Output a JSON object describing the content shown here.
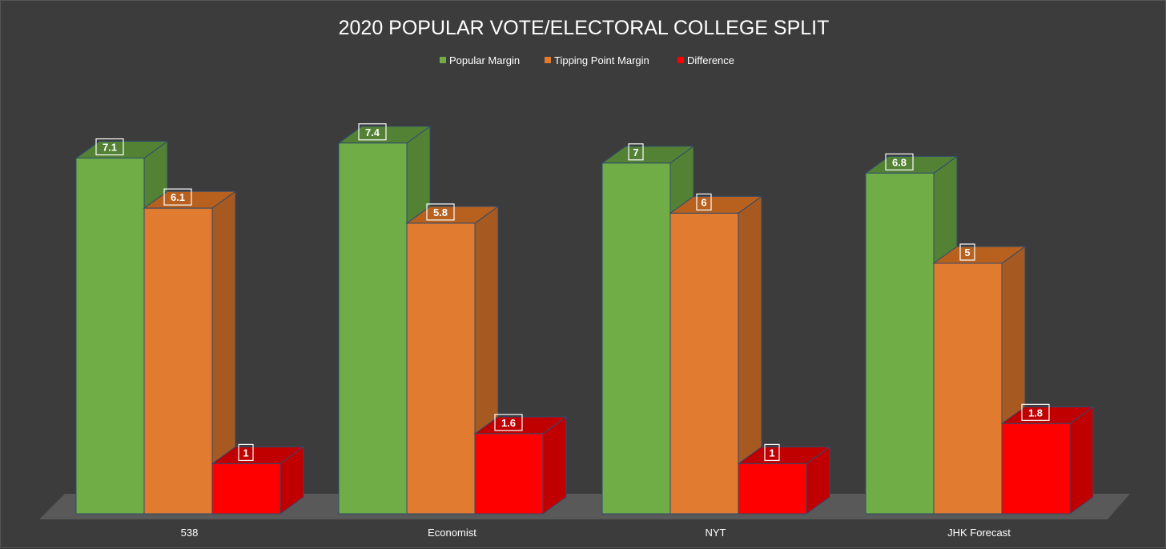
{
  "chart_data": {
    "type": "bar",
    "title": "2020 POPULAR VOTE/ELECTORAL COLLEGE SPLIT",
    "categories": [
      "538",
      "Economist",
      "NYT",
      "JHK Forecast"
    ],
    "series": [
      {
        "name": "Popular Margin",
        "values": [
          7.1,
          7.4,
          7,
          6.8
        ],
        "color": "#70ad47",
        "side_color": "#548235",
        "top_color": "#548235"
      },
      {
        "name": "Tipping Point Margin",
        "values": [
          6.1,
          5.8,
          6,
          5
        ],
        "color": "#e07b30",
        "side_color": "#a65a22",
        "top_color": "#b8611f"
      },
      {
        "name": "Difference",
        "values": [
          1,
          1.6,
          1,
          1.8
        ],
        "color": "#ff0000",
        "side_color": "#c00000",
        "top_color": "#c00000"
      }
    ],
    "data_labels": [
      [
        "7.1",
        "7.4",
        "7",
        "6.8"
      ],
      [
        "6.1",
        "5.8",
        "6",
        "5"
      ],
      [
        "1",
        "1.6",
        "1",
        "1.8"
      ]
    ],
    "xlabel": "",
    "ylabel": "",
    "ylim": [
      0,
      8
    ],
    "grid": false,
    "legend_position": "top-center",
    "style": "3d-clustered-column",
    "background_color": "#3c3c3c",
    "floor_color": "#595959"
  }
}
